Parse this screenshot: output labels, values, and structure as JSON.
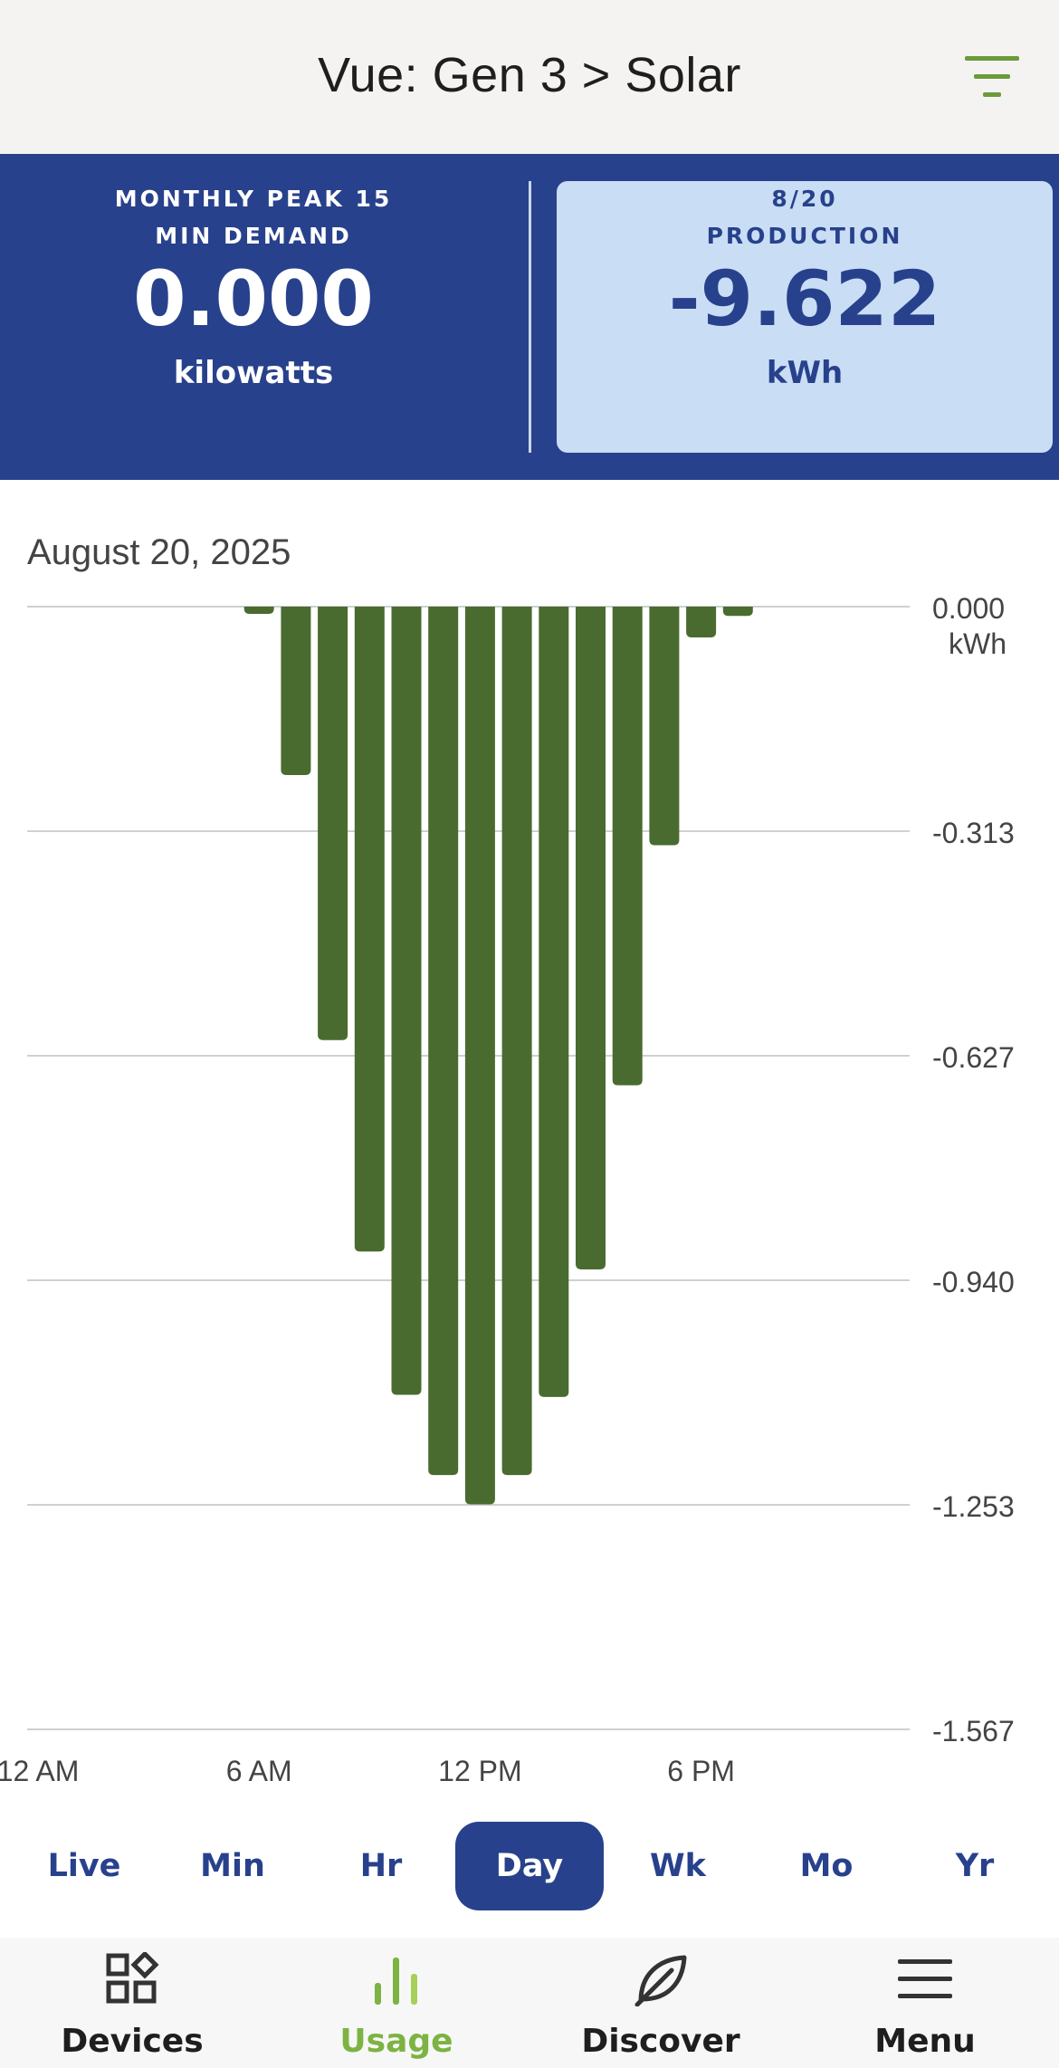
{
  "header": {
    "title": "Vue: Gen 3 > Solar",
    "filter_icon": "filter-lines-icon",
    "accent_color": "#6a9a3a"
  },
  "summary": {
    "left": {
      "label_line1": "MONTHLY PEAK 15",
      "label_line2": "MIN DEMAND",
      "value": "0.000",
      "unit": "kilowatts"
    },
    "right": {
      "label_line1": "8/20",
      "label_line2": "PRODUCTION",
      "value": "-9.622",
      "unit": "kWh"
    },
    "background_color": "#28418c",
    "active_card_color": "#c9def5"
  },
  "chart": {
    "date_label": "August 20, 2025"
  },
  "chart_data": {
    "type": "bar",
    "unit": "kWh",
    "bar_color": "#4a6b30",
    "x_ticks": [
      "12 AM",
      "6 AM",
      "12 PM",
      "6 PM"
    ],
    "y_ticks": [
      "0.000",
      "-0.313",
      "-0.627",
      "-0.940",
      "-1.253",
      "-1.567"
    ],
    "y_top_unit": "kWh",
    "ylim": [
      -1.567,
      0
    ],
    "hours": [
      6,
      7,
      8,
      9,
      10,
      11,
      12,
      13,
      14,
      15,
      16,
      17,
      18,
      19
    ],
    "values": [
      -0.01,
      -0.235,
      -0.605,
      -0.9,
      -1.1,
      -1.212,
      -1.253,
      -1.212,
      -1.103,
      -0.925,
      -0.668,
      -0.333,
      -0.043,
      -0.013
    ]
  },
  "ranges": {
    "items": [
      "Live",
      "Min",
      "Hr",
      "Day",
      "Wk",
      "Mo",
      "Yr"
    ],
    "active": "Day"
  },
  "nav": {
    "items": [
      {
        "label": "Devices",
        "icon": "devices-grid-icon"
      },
      {
        "label": "Usage",
        "icon": "usage-bars-icon"
      },
      {
        "label": "Discover",
        "icon": "leaf-icon"
      },
      {
        "label": "Menu",
        "icon": "hamburger-menu-icon"
      }
    ],
    "active": "Usage",
    "active_color": "#7cb342"
  }
}
